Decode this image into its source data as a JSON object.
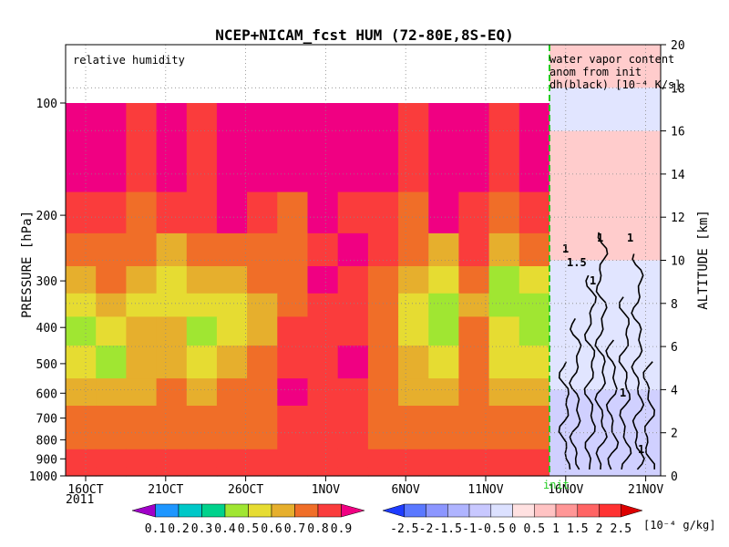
{
  "chart_data": {
    "type": "heatmap",
    "title": "NCEP+NICAM_fcst HUM (72-80E,8S-EQ)",
    "panel_label_left": "relative humidity",
    "panel_label_right": [
      "water vapor content",
      "anom from init",
      "dh(black) [10⁻⁴ K/s]"
    ],
    "ylabel_left": "PRESSURE [hPa]",
    "ylabel_right": "ALTITUDE [km]",
    "init_label": "init",
    "year_label": "2011",
    "x_ticks": [
      "16OCT",
      "21OCT",
      "26OCT",
      "1NOV",
      "6NOV",
      "11NOV",
      "16NOV",
      "21NOV"
    ],
    "pressure_ticks": [
      "100",
      "200",
      "300",
      "400",
      "500",
      "600",
      "700",
      "800",
      "900",
      "1000"
    ],
    "altitude_ticks": [
      "0",
      "2",
      "4",
      "6",
      "8",
      "10",
      "12",
      "14",
      "16",
      "18",
      "20"
    ],
    "altitude_range_km": [
      0,
      20
    ],
    "rh_colorbar": {
      "labels": [
        "0.1",
        "0.2",
        "0.3",
        "0.4",
        "0.5",
        "0.6",
        "0.7",
        "0.8",
        "0.9"
      ],
      "colors": [
        "#a000c8",
        "#1e96ff",
        "#00c8c8",
        "#00d28c",
        "#a0e632",
        "#e6dc32",
        "#e6af2d",
        "#f06e28",
        "#fa3c3c",
        "#f00082"
      ]
    },
    "anom_colorbar": {
      "labels": [
        "-2.5",
        "-2",
        "-1.5",
        "-1",
        "-0.5",
        "0",
        "0.5",
        "1",
        "1.5",
        "2",
        "2.5"
      ],
      "unit": "[10⁻⁴ g/kg]",
      "colors": [
        "#1e3cff",
        "#5a78ff",
        "#8c96ff",
        "#afb4ff",
        "#c8c8ff",
        "#dce1ff",
        "#ffe1e1",
        "#ffc3c3",
        "#ff9696",
        "#ff6464",
        "#ff3232",
        "#dc0000"
      ]
    },
    "contour_labels": [
      "1",
      "1",
      "1",
      "1.5",
      "1",
      "1",
      "1"
    ],
    "rh_field": {
      "dates": [
        "14OCT",
        "16OCT",
        "18OCT",
        "20OCT",
        "22OCT",
        "24OCT",
        "26OCT",
        "28OCT",
        "30OCT",
        "1NOV",
        "3NOV",
        "5NOV",
        "7NOV",
        "9NOV",
        "11NOV",
        "13NOV"
      ],
      "pressure_levels_hPa": [
        100,
        150,
        200,
        250,
        300,
        350,
        400,
        500,
        600,
        700,
        800,
        900,
        1000
      ],
      "values": [
        [
          0.9,
          0.9,
          0.8,
          0.9,
          0.8,
          0.9,
          0.9,
          0.9,
          0.9,
          0.9,
          0.9,
          0.8,
          0.9,
          0.9,
          0.8,
          0.9
        ],
        [
          0.9,
          0.9,
          0.8,
          0.9,
          0.8,
          0.9,
          0.9,
          0.9,
          0.9,
          0.9,
          0.9,
          0.8,
          0.9,
          0.9,
          0.8,
          0.9
        ],
        [
          0.8,
          0.8,
          0.7,
          0.8,
          0.8,
          0.9,
          0.8,
          0.7,
          0.9,
          0.8,
          0.8,
          0.7,
          0.9,
          0.8,
          0.7,
          0.8
        ],
        [
          0.7,
          0.7,
          0.7,
          0.6,
          0.7,
          0.7,
          0.7,
          0.7,
          0.8,
          0.9,
          0.8,
          0.7,
          0.6,
          0.8,
          0.6,
          0.7
        ],
        [
          0.6,
          0.7,
          0.6,
          0.5,
          0.6,
          0.6,
          0.7,
          0.7,
          0.9,
          0.8,
          0.7,
          0.6,
          0.5,
          0.7,
          0.4,
          0.5
        ],
        [
          0.5,
          0.6,
          0.5,
          0.5,
          0.5,
          0.5,
          0.6,
          0.7,
          0.8,
          0.8,
          0.7,
          0.5,
          0.4,
          0.6,
          0.4,
          0.4
        ],
        [
          0.4,
          0.5,
          0.6,
          0.6,
          0.4,
          0.5,
          0.6,
          0.8,
          0.8,
          0.8,
          0.7,
          0.5,
          0.4,
          0.7,
          0.5,
          0.4
        ],
        [
          0.5,
          0.4,
          0.6,
          0.6,
          0.5,
          0.6,
          0.7,
          0.8,
          0.8,
          0.9,
          0.7,
          0.6,
          0.5,
          0.7,
          0.5,
          0.5
        ],
        [
          0.6,
          0.6,
          0.6,
          0.7,
          0.6,
          0.7,
          0.7,
          0.9,
          0.8,
          0.8,
          0.7,
          0.6,
          0.6,
          0.7,
          0.6,
          0.6
        ],
        [
          0.7,
          0.7,
          0.7,
          0.7,
          0.7,
          0.7,
          0.7,
          0.8,
          0.8,
          0.8,
          0.7,
          0.7,
          0.7,
          0.7,
          0.7,
          0.7
        ],
        [
          0.7,
          0.7,
          0.7,
          0.7,
          0.7,
          0.7,
          0.7,
          0.8,
          0.8,
          0.8,
          0.7,
          0.7,
          0.7,
          0.7,
          0.7,
          0.7
        ],
        [
          0.8,
          0.8,
          0.8,
          0.8,
          0.8,
          0.8,
          0.8,
          0.8,
          0.8,
          0.8,
          0.8,
          0.8,
          0.8,
          0.8,
          0.8,
          0.8
        ],
        [
          0.8,
          0.8,
          0.8,
          0.8,
          0.8,
          0.8,
          0.8,
          0.8,
          0.8,
          0.8,
          0.8,
          0.8,
          0.8,
          0.8,
          0.8,
          0.8
        ]
      ]
    },
    "anomaly_field": {
      "altitude_km": [
        0,
        2,
        4,
        6,
        8,
        10,
        12,
        14,
        16,
        18,
        20
      ],
      "description_values": [
        -1.0,
        -1.0,
        -0.5,
        -0.5,
        -0.5,
        0.5,
        0.5,
        0.5,
        -0.5,
        0.5,
        0.5
      ]
    }
  }
}
